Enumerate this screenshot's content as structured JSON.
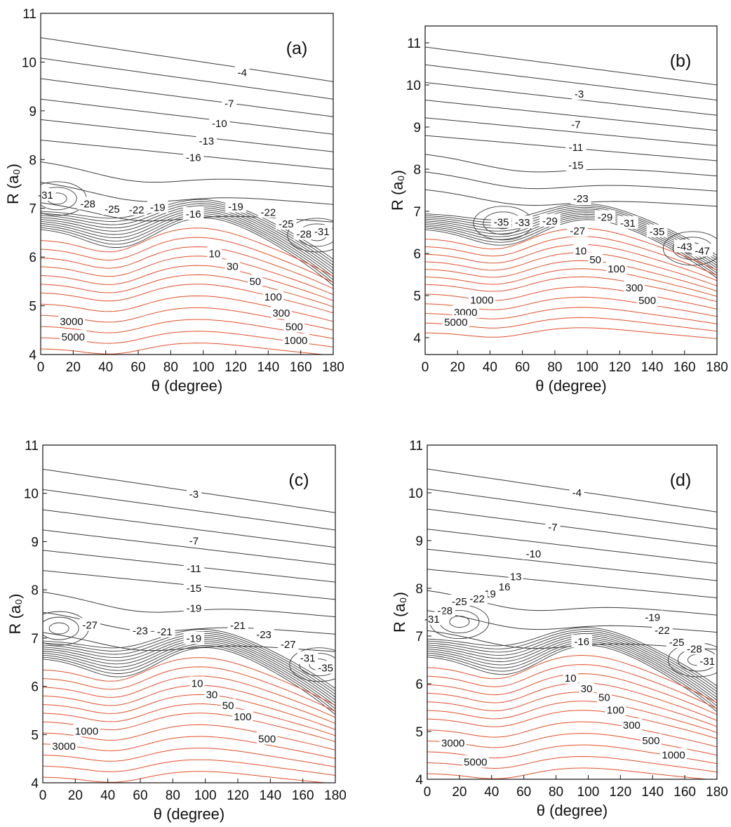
{
  "colors": {
    "negative_contour": "#3a3a3a",
    "positive_contour": "#e0502a",
    "axes": "#111111"
  },
  "chart_data": [
    {
      "type": "contour",
      "panel_label": "(a)",
      "xlabel": "θ (degree)",
      "ylabel": "R (a₀)",
      "xlim": [
        0,
        180
      ],
      "ylim": [
        4,
        11
      ],
      "xticks": [
        0,
        20,
        40,
        60,
        80,
        100,
        120,
        140,
        160,
        180
      ],
      "yticks": [
        4,
        5,
        6,
        7,
        8,
        9,
        10,
        11
      ],
      "grid": false,
      "contour_labels": [
        {
          "text": "-4",
          "x": 124,
          "y": 9.78
        },
        {
          "text": "-7",
          "x": 116,
          "y": 9.15
        },
        {
          "text": "-10",
          "x": 110,
          "y": 8.74
        },
        {
          "text": "-13",
          "x": 102,
          "y": 8.38
        },
        {
          "text": "-16",
          "x": 94,
          "y": 8.04
        },
        {
          "text": "-31",
          "x": 3,
          "y": 7.27
        },
        {
          "text": "-28",
          "x": 29,
          "y": 7.09
        },
        {
          "text": "-25",
          "x": 44,
          "y": 6.98
        },
        {
          "text": "-22",
          "x": 59,
          "y": 6.97
        },
        {
          "text": "-19",
          "x": 72,
          "y": 7.02
        },
        {
          "text": "-16",
          "x": 94,
          "y": 6.88
        },
        {
          "text": "-19",
          "x": 120,
          "y": 7.03
        },
        {
          "text": "-22",
          "x": 140,
          "y": 6.92
        },
        {
          "text": "-25",
          "x": 151,
          "y": 6.68
        },
        {
          "text": "-28",
          "x": 162,
          "y": 6.47
        },
        {
          "text": "-31",
          "x": 173,
          "y": 6.52
        },
        {
          "text": "10",
          "x": 107,
          "y": 6.07
        },
        {
          "text": "30",
          "x": 118,
          "y": 5.81
        },
        {
          "text": "50",
          "x": 132,
          "y": 5.5
        },
        {
          "text": "100",
          "x": 143,
          "y": 5.18
        },
        {
          "text": "300",
          "x": 148,
          "y": 4.85
        },
        {
          "text": "500",
          "x": 156,
          "y": 4.57
        },
        {
          "text": "1000",
          "x": 157,
          "y": 4.29
        },
        {
          "text": "3000",
          "x": 19,
          "y": 4.68
        },
        {
          "text": "5000",
          "x": 20,
          "y": 4.36
        }
      ]
    },
    {
      "type": "contour",
      "panel_label": "(b)",
      "xlabel": "θ (degree)",
      "ylabel": "R (a₀)",
      "xlim": [
        0,
        180
      ],
      "ylim": [
        3.6,
        11.4
      ],
      "xticks": [
        0,
        20,
        40,
        60,
        80,
        100,
        120,
        140,
        160,
        180
      ],
      "yticks": [
        4,
        5,
        6,
        7,
        8,
        9,
        10,
        11
      ],
      "grid": false,
      "contour_labels": [
        {
          "text": "-3",
          "x": 95,
          "y": 9.78
        },
        {
          "text": "-7",
          "x": 93,
          "y": 9.06
        },
        {
          "text": "-11",
          "x": 93,
          "y": 8.52
        },
        {
          "text": "-15",
          "x": 93,
          "y": 8.09
        },
        {
          "text": "-23",
          "x": 96,
          "y": 7.3
        },
        {
          "text": "-35",
          "x": 47,
          "y": 6.74
        },
        {
          "text": "-33",
          "x": 60,
          "y": 6.73
        },
        {
          "text": "-29",
          "x": 77,
          "y": 6.77
        },
        {
          "text": "-27",
          "x": 94,
          "y": 6.53
        },
        {
          "text": "-29",
          "x": 111,
          "y": 6.86
        },
        {
          "text": "-31",
          "x": 125,
          "y": 6.72
        },
        {
          "text": "-35",
          "x": 143,
          "y": 6.52
        },
        {
          "text": "-43",
          "x": 160,
          "y": 6.16
        },
        {
          "text": "-47",
          "x": 171,
          "y": 6.06
        },
        {
          "text": "10",
          "x": 96,
          "y": 6.06
        },
        {
          "text": "50",
          "x": 105,
          "y": 5.85
        },
        {
          "text": "100",
          "x": 118,
          "y": 5.63
        },
        {
          "text": "300",
          "x": 129,
          "y": 5.18
        },
        {
          "text": "500",
          "x": 137,
          "y": 4.88
        },
        {
          "text": "1000",
          "x": 35,
          "y": 4.89
        },
        {
          "text": "3000",
          "x": 25,
          "y": 4.6
        },
        {
          "text": "5000",
          "x": 19,
          "y": 4.37
        }
      ]
    },
    {
      "type": "contour",
      "panel_label": "(c)",
      "xlabel": "θ (degree)",
      "ylabel": "R (a₀)",
      "xlim": [
        0,
        180
      ],
      "ylim": [
        4,
        11
      ],
      "xticks": [
        0,
        20,
        40,
        60,
        80,
        100,
        120,
        140,
        160,
        180
      ],
      "yticks": [
        4,
        5,
        6,
        7,
        8,
        9,
        10,
        11
      ],
      "grid": false,
      "contour_labels": [
        {
          "text": "-3",
          "x": 93,
          "y": 9.98
        },
        {
          "text": "-7",
          "x": 93,
          "y": 9.01
        },
        {
          "text": "-11",
          "x": 93,
          "y": 8.44
        },
        {
          "text": "-15",
          "x": 93,
          "y": 8.03
        },
        {
          "text": "-19",
          "x": 93,
          "y": 7.62
        },
        {
          "text": "-27",
          "x": 29,
          "y": 7.27
        },
        {
          "text": "-23",
          "x": 60,
          "y": 7.15
        },
        {
          "text": "-21",
          "x": 75,
          "y": 7.13
        },
        {
          "text": "-19",
          "x": 93,
          "y": 6.99
        },
        {
          "text": "-21",
          "x": 120,
          "y": 7.26
        },
        {
          "text": "-23",
          "x": 136,
          "y": 7.07
        },
        {
          "text": "-27",
          "x": 151,
          "y": 6.87
        },
        {
          "text": "-31",
          "x": 163,
          "y": 6.58
        },
        {
          "text": "-35",
          "x": 174,
          "y": 6.38
        },
        {
          "text": "10",
          "x": 95,
          "y": 6.06
        },
        {
          "text": "30",
          "x": 104,
          "y": 5.83
        },
        {
          "text": "50",
          "x": 114,
          "y": 5.6
        },
        {
          "text": "100",
          "x": 123,
          "y": 5.37
        },
        {
          "text": "500",
          "x": 138,
          "y": 4.91
        },
        {
          "text": "1000",
          "x": 27,
          "y": 5.07
        },
        {
          "text": "3000",
          "x": 13,
          "y": 4.76
        }
      ]
    },
    {
      "type": "contour",
      "panel_label": "(d)",
      "xlabel": "θ (degree)",
      "ylabel": "R (a₀)",
      "xlim": [
        0,
        180
      ],
      "ylim": [
        4,
        11
      ],
      "xticks": [
        0,
        20,
        40,
        60,
        80,
        100,
        120,
        140,
        160,
        180
      ],
      "yticks": [
        4,
        5,
        6,
        7,
        8,
        9,
        10,
        11
      ],
      "grid": false,
      "contour_labels": [
        {
          "text": "-4",
          "x": 93,
          "y": 10.0
        },
        {
          "text": "-7",
          "x": 78,
          "y": 9.28
        },
        {
          "text": "-10",
          "x": 66,
          "y": 8.72
        },
        {
          "text": "13",
          "x": 55,
          "y": 8.24
        },
        {
          "text": "16",
          "x": 48,
          "y": 8.03
        },
        {
          "text": "19",
          "x": 39,
          "y": 7.88
        },
        {
          "text": "-22",
          "x": 31,
          "y": 7.78
        },
        {
          "text": "-25",
          "x": 20,
          "y": 7.72
        },
        {
          "text": "-28",
          "x": 11,
          "y": 7.53
        },
        {
          "text": "-31",
          "x": 3,
          "y": 7.35
        },
        {
          "text": "-16",
          "x": 96,
          "y": 6.88
        },
        {
          "text": "-19",
          "x": 140,
          "y": 7.39
        },
        {
          "text": "-22",
          "x": 146,
          "y": 7.12
        },
        {
          "text": "-25",
          "x": 155,
          "y": 6.87
        },
        {
          "text": "-28",
          "x": 166,
          "y": 6.73
        },
        {
          "text": "-31",
          "x": 174,
          "y": 6.47
        },
        {
          "text": "10",
          "x": 89,
          "y": 6.12
        },
        {
          "text": "30",
          "x": 99,
          "y": 5.9
        },
        {
          "text": "50",
          "x": 110,
          "y": 5.71
        },
        {
          "text": "100",
          "x": 117,
          "y": 5.45
        },
        {
          "text": "300",
          "x": 127,
          "y": 5.13
        },
        {
          "text": "500",
          "x": 139,
          "y": 4.81
        },
        {
          "text": "1000",
          "x": 153,
          "y": 4.51
        },
        {
          "text": "3000",
          "x": 16,
          "y": 4.76
        },
        {
          "text": "5000",
          "x": 30,
          "y": 4.36
        }
      ]
    }
  ]
}
